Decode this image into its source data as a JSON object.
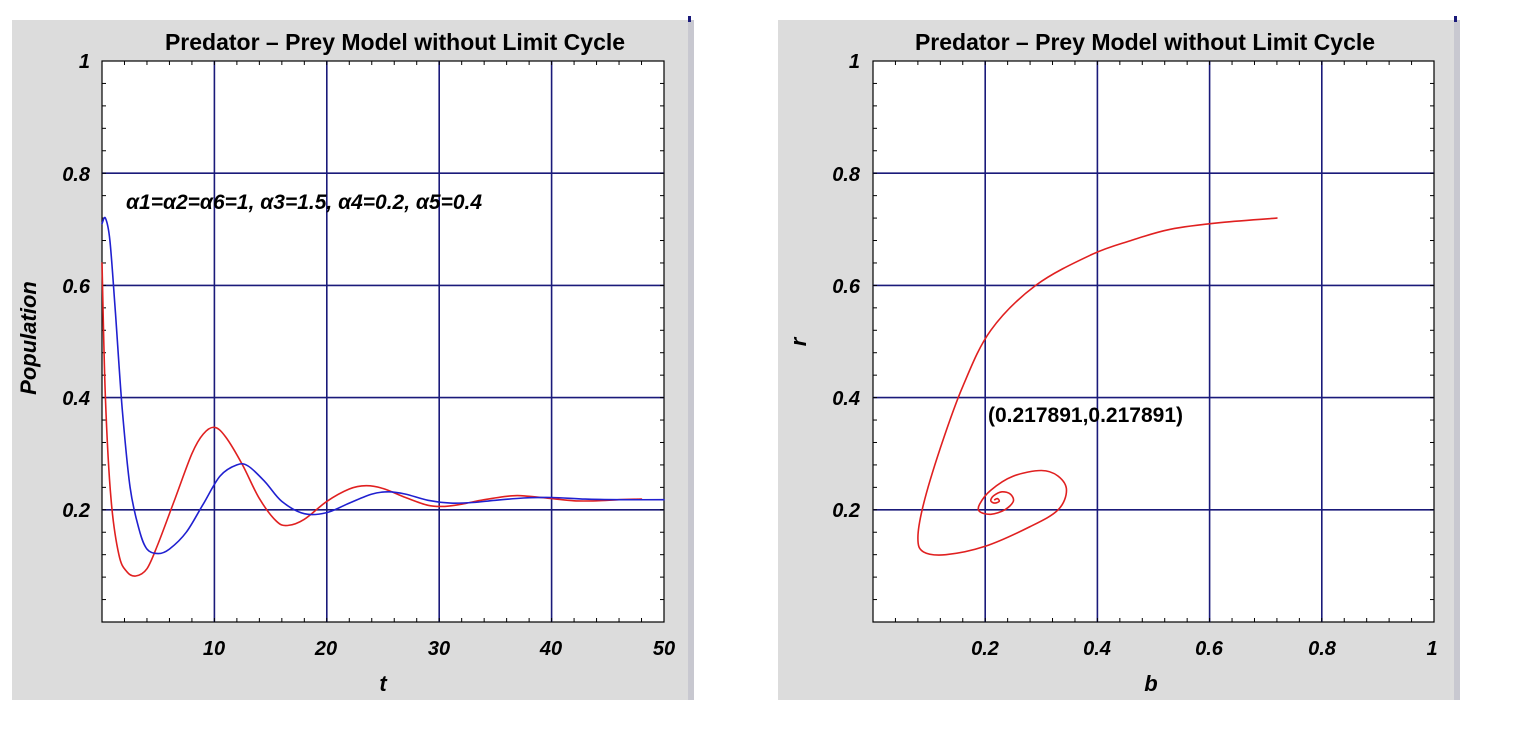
{
  "colors": {
    "background": "#dcdcdc",
    "grid": "#1a1a7a",
    "prey": "#e02020",
    "predator": "#2020d0"
  },
  "chart_data": [
    {
      "type": "line",
      "title": "Predator – Prey Model without Limit Cycle",
      "xlabel": "t",
      "ylabel": "Population",
      "xlim": [
        0,
        50
      ],
      "ylim": [
        0,
        1
      ],
      "xticks": [
        "10",
        "20",
        "30",
        "40",
        "50"
      ],
      "yticks": [
        "0.2",
        "0.4",
        "0.6",
        "0.8",
        "1"
      ],
      "grid": true,
      "annotation": "α1=α2=α6=1, α3=1.5, α4=0.2, α5=0.4",
      "series": [
        {
          "color": "#e02020",
          "x": [
            0,
            0.3,
            0.8,
            1.5,
            2.2,
            3.0,
            4.0,
            5.0,
            6.5,
            8.0,
            9.0,
            10.0,
            11.0,
            12.5,
            14.0,
            15.5,
            16.5,
            18.0,
            20.0,
            22.0,
            23.5,
            25.0,
            27.0,
            29.0,
            30.5,
            32.0,
            34.0,
            36.5,
            38.0,
            40.0,
            42.0,
            44.0,
            46.0,
            48.0
          ],
          "y": [
            0.64,
            0.4,
            0.22,
            0.12,
            0.09,
            0.082,
            0.095,
            0.14,
            0.22,
            0.3,
            0.335,
            0.347,
            0.33,
            0.28,
            0.22,
            0.18,
            0.172,
            0.183,
            0.215,
            0.237,
            0.243,
            0.238,
            0.222,
            0.208,
            0.206,
            0.21,
            0.218,
            0.225,
            0.224,
            0.22,
            0.216,
            0.216,
            0.218,
            0.219
          ]
        },
        {
          "color": "#2020d0",
          "x": [
            0,
            0.3,
            0.7,
            1.2,
            1.8,
            2.5,
            3.3,
            4.0,
            5.0,
            6.0,
            7.5,
            9.0,
            10.5,
            12.0,
            13.0,
            14.5,
            16.0,
            18.0,
            20.0,
            22.0,
            24.0,
            25.5,
            27.0,
            29.0,
            31.0,
            33.0,
            35.0,
            37.5,
            40.0,
            43.0,
            46.0,
            50.0
          ],
          "y": [
            0.71,
            0.72,
            0.68,
            0.55,
            0.38,
            0.24,
            0.165,
            0.13,
            0.122,
            0.13,
            0.16,
            0.21,
            0.26,
            0.28,
            0.278,
            0.25,
            0.215,
            0.193,
            0.195,
            0.212,
            0.228,
            0.232,
            0.228,
            0.217,
            0.212,
            0.213,
            0.217,
            0.221,
            0.222,
            0.219,
            0.218,
            0.218
          ]
        }
      ]
    },
    {
      "type": "line",
      "title": "Predator – Prey Model without Limit Cycle",
      "xlabel": "b",
      "ylabel": "r",
      "xlim": [
        0,
        1
      ],
      "ylim": [
        0,
        1
      ],
      "xticks": [
        "0.2",
        "0.4",
        "0.6",
        "0.8",
        "1"
      ],
      "yticks": [
        "0.2",
        "0.4",
        "0.6",
        "0.8",
        "1"
      ],
      "grid": true,
      "annotation": "(0.217891,0.217891)",
      "series": [
        {
          "color": "#e02020",
          "x": [
            0.72,
            0.62,
            0.53,
            0.46,
            0.39,
            0.29,
            0.21,
            0.16,
            0.12,
            0.09,
            0.08,
            0.09,
            0.13,
            0.2,
            0.28,
            0.33,
            0.345,
            0.33,
            0.3,
            0.25,
            0.21,
            0.19,
            0.19,
            0.21,
            0.235,
            0.25,
            0.245,
            0.23,
            0.215,
            0.21,
            0.217,
            0.225,
            0.222,
            0.217
          ],
          "y": [
            0.72,
            0.712,
            0.7,
            0.68,
            0.655,
            0.6,
            0.52,
            0.42,
            0.31,
            0.21,
            0.15,
            0.125,
            0.12,
            0.135,
            0.17,
            0.2,
            0.235,
            0.26,
            0.27,
            0.26,
            0.235,
            0.21,
            0.197,
            0.192,
            0.2,
            0.215,
            0.228,
            0.232,
            0.225,
            0.216,
            0.212,
            0.215,
            0.22,
            0.218
          ]
        }
      ]
    }
  ]
}
